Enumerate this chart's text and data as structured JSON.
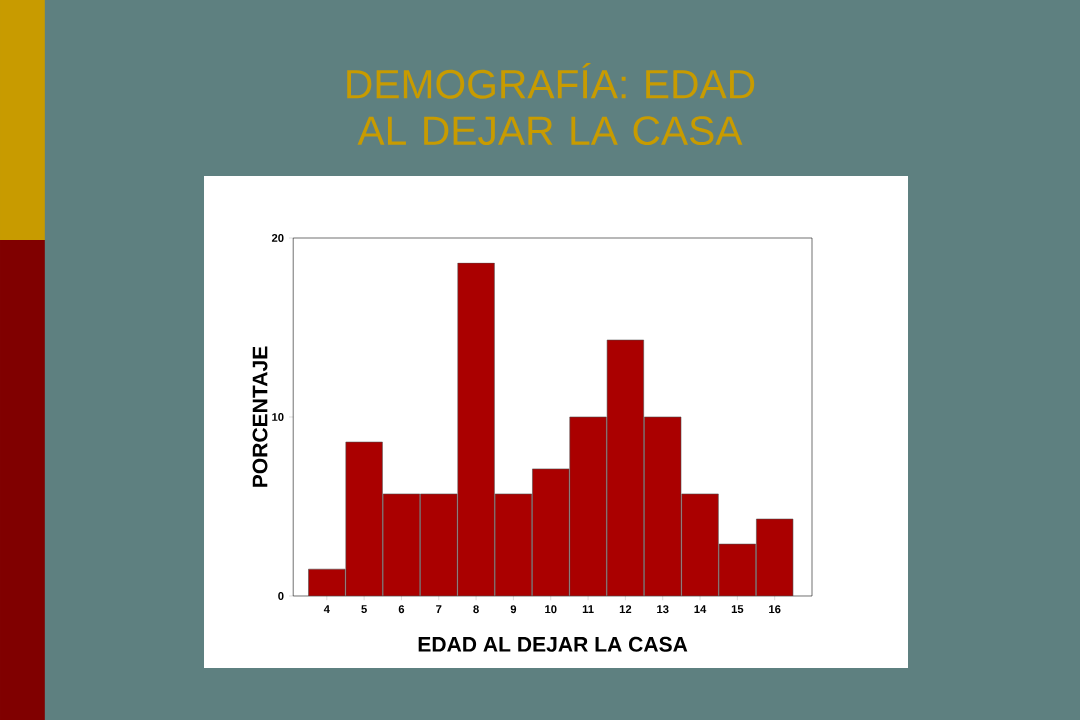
{
  "chart_data": {
    "type": "bar",
    "title": "DEMOGRAFÍA: EDAD AL DEJAR LA CASA",
    "xlabel": "EDAD AL DEJAR LA CASA",
    "ylabel": "PORCENTAJE",
    "categories": [
      "4",
      "5",
      "6",
      "7",
      "8",
      "9",
      "10",
      "11",
      "12",
      "13",
      "14",
      "15",
      "16"
    ],
    "values": [
      1.5,
      8.6,
      5.7,
      5.7,
      18.6,
      5.7,
      7.1,
      10.0,
      14.3,
      10.0,
      5.7,
      2.9,
      4.3
    ],
    "color": "#aa0000",
    "ylim": [
      0,
      20
    ],
    "yticks": [
      0,
      10,
      20
    ]
  }
}
